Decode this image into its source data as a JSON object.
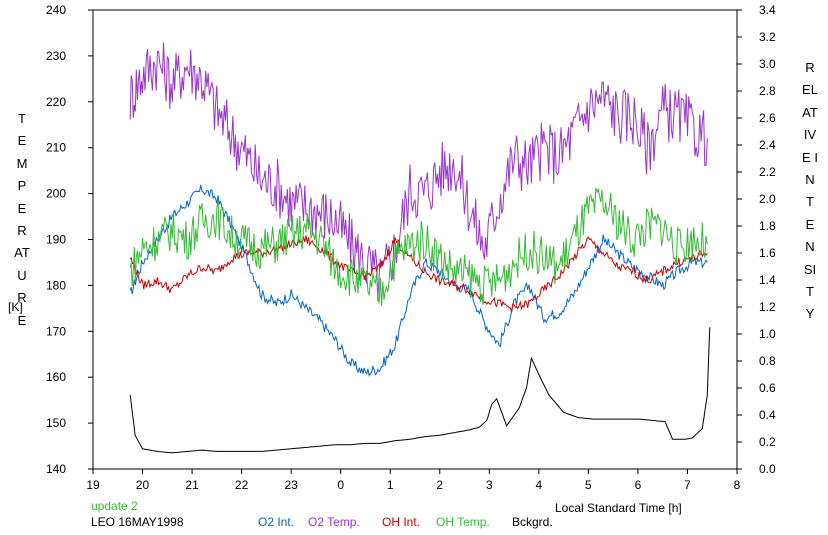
{
  "chart_data": {
    "type": "line",
    "xlabel": "Local Standard Time [h]",
    "x_axis": {
      "range": [
        19,
        32
      ],
      "ticks": [
        19,
        20,
        21,
        22,
        23,
        24,
        25,
        26,
        27,
        28,
        29,
        30,
        31,
        32
      ],
      "tick_labels": [
        "19",
        "20",
        "21",
        "22",
        "23",
        "0",
        "1",
        "2",
        "3",
        "4",
        "5",
        "6",
        "7",
        "8"
      ]
    },
    "y_left": {
      "label": "TEMPERATURE",
      "unit": "[K]",
      "range": [
        140,
        240
      ],
      "ticks": [
        140,
        150,
        160,
        170,
        180,
        190,
        200,
        210,
        220,
        230,
        240
      ]
    },
    "y_right": {
      "label": "RELATIVE INTENSITY",
      "range": [
        0.0,
        3.4
      ],
      "ticks": [
        "0.0",
        "0.2",
        "0.4",
        "0.6",
        "0.8",
        "1.0",
        "1.2",
        "1.4",
        "1.6",
        "1.8",
        "2.0",
        "2.2",
        "2.4",
        "2.6",
        "2.8",
        "3.0",
        "3.2",
        "3.4"
      ]
    },
    "annotations": {
      "update": "update 2",
      "station_date": "LEO 16MAY1998"
    },
    "legend": [
      {
        "name": "O2 Int.",
        "color": "#0066cc"
      },
      {
        "name": "O2 Temp.",
        "color": "#9933cc"
      },
      {
        "name": "OH Int.",
        "color": "#cc0000"
      },
      {
        "name": "OH Temp.",
        "color": "#33bb33"
      },
      {
        "name": "Bckgrd.",
        "color": "#000000"
      }
    ],
    "series": [
      {
        "name": "O2 Int.",
        "axis": "left",
        "color": "#0066cc",
        "x": [
          19.75,
          20.0,
          20.3,
          20.6,
          20.9,
          21.2,
          21.5,
          21.8,
          22.1,
          22.4,
          22.7,
          23.0,
          23.3,
          23.6,
          23.9,
          24.2,
          24.5,
          24.8,
          25.1,
          25.4,
          25.7,
          26.0,
          26.3,
          26.6,
          26.9,
          27.2,
          27.5,
          27.8,
          28.1,
          28.4,
          28.7,
          29.0,
          29.3,
          29.6,
          29.9,
          30.2,
          30.5,
          30.8,
          31.1,
          31.4
        ],
        "y": [
          178,
          185,
          190,
          195,
          198,
          201,
          199,
          193,
          186,
          178,
          176,
          178,
          175,
          172,
          168,
          163,
          161,
          162,
          167,
          178,
          185,
          183,
          180,
          179,
          172,
          167,
          176,
          180,
          173,
          174,
          178,
          184,
          190,
          187,
          184,
          182,
          180,
          183,
          185,
          185
        ]
      },
      {
        "name": "O2 Temp.",
        "axis": "left",
        "color": "#9933cc",
        "x": [
          19.75,
          20.0,
          20.3,
          20.6,
          20.9,
          21.2,
          21.5,
          21.8,
          22.1,
          22.4,
          22.7,
          23.0,
          23.3,
          23.6,
          23.9,
          24.2,
          24.5,
          24.8,
          25.1,
          25.4,
          25.7,
          26.0,
          26.3,
          26.6,
          26.9,
          27.2,
          27.5,
          27.8,
          28.1,
          28.4,
          28.7,
          29.0,
          29.3,
          29.6,
          29.9,
          30.2,
          30.5,
          30.8,
          31.1,
          31.4
        ],
        "y": [
          221,
          226,
          229,
          224,
          228,
          225,
          218,
          213,
          208,
          203,
          202,
          198,
          197,
          196,
          194,
          189,
          185,
          181,
          188,
          201,
          200,
          205,
          207,
          197,
          188,
          199,
          208,
          206,
          210,
          208,
          213,
          219,
          221,
          217,
          217,
          210,
          218,
          217,
          214,
          212
        ]
      },
      {
        "name": "OH Int.",
        "axis": "left",
        "color": "#cc0000",
        "x": [
          19.75,
          20.0,
          20.3,
          20.6,
          20.9,
          21.2,
          21.5,
          21.8,
          22.1,
          22.4,
          22.7,
          23.0,
          23.3,
          23.6,
          23.9,
          24.2,
          24.5,
          24.8,
          25.1,
          25.4,
          25.7,
          26.0,
          26.3,
          26.6,
          26.9,
          27.2,
          27.5,
          27.8,
          28.1,
          28.4,
          28.7,
          29.0,
          29.3,
          29.6,
          29.9,
          30.2,
          30.5,
          30.8,
          31.1,
          31.4
        ],
        "y": [
          186,
          180,
          181,
          179,
          182,
          184,
          183,
          186,
          187,
          187,
          188,
          189,
          190,
          188,
          185,
          183,
          182,
          184,
          190,
          186,
          183,
          181,
          180,
          179,
          177,
          176,
          175,
          176,
          179,
          182,
          186,
          190,
          187,
          184,
          183,
          181,
          183,
          185,
          186,
          187
        ]
      },
      {
        "name": "OH Temp.",
        "axis": "left",
        "color": "#33bb33",
        "x": [
          19.75,
          20.0,
          20.3,
          20.6,
          20.9,
          21.2,
          21.5,
          21.8,
          22.1,
          22.4,
          22.7,
          23.0,
          23.3,
          23.6,
          23.9,
          24.2,
          24.5,
          24.8,
          25.1,
          25.4,
          25.7,
          26.0,
          26.3,
          26.6,
          26.9,
          27.2,
          27.5,
          27.8,
          28.1,
          28.4,
          28.7,
          29.0,
          29.3,
          29.6,
          29.9,
          30.2,
          30.5,
          30.8,
          31.1,
          31.4
        ],
        "y": [
          183,
          188,
          190,
          192,
          190,
          194,
          195,
          191,
          189,
          188,
          189,
          191,
          192,
          190,
          184,
          182,
          180,
          178,
          186,
          189,
          190,
          186,
          183,
          182,
          180,
          181,
          185,
          188,
          186,
          184,
          190,
          196,
          198,
          194,
          190,
          193,
          193,
          188,
          190,
          189
        ]
      },
      {
        "name": "Bckgrd.",
        "axis": "right",
        "color": "#000000",
        "x": [
          19.75,
          19.85,
          20.0,
          20.3,
          20.6,
          20.9,
          21.2,
          21.5,
          21.8,
          22.1,
          22.4,
          22.7,
          23.0,
          23.3,
          23.6,
          23.9,
          24.2,
          24.5,
          24.8,
          25.1,
          25.4,
          25.7,
          26.0,
          26.3,
          26.6,
          26.8,
          26.95,
          27.05,
          27.15,
          27.35,
          27.6,
          27.75,
          27.85,
          28.0,
          28.2,
          28.5,
          28.8,
          29.1,
          29.4,
          29.7,
          30.0,
          30.3,
          30.55,
          30.7,
          30.95,
          31.1,
          31.3,
          31.4,
          31.45
        ],
        "y": [
          0.55,
          0.25,
          0.15,
          0.13,
          0.12,
          0.13,
          0.14,
          0.13,
          0.13,
          0.13,
          0.13,
          0.14,
          0.15,
          0.16,
          0.17,
          0.18,
          0.18,
          0.19,
          0.19,
          0.21,
          0.22,
          0.24,
          0.25,
          0.27,
          0.29,
          0.31,
          0.36,
          0.48,
          0.52,
          0.32,
          0.45,
          0.6,
          0.82,
          0.7,
          0.55,
          0.42,
          0.38,
          0.37,
          0.37,
          0.37,
          0.37,
          0.36,
          0.35,
          0.22,
          0.22,
          0.23,
          0.3,
          0.55,
          1.05
        ]
      }
    ]
  }
}
